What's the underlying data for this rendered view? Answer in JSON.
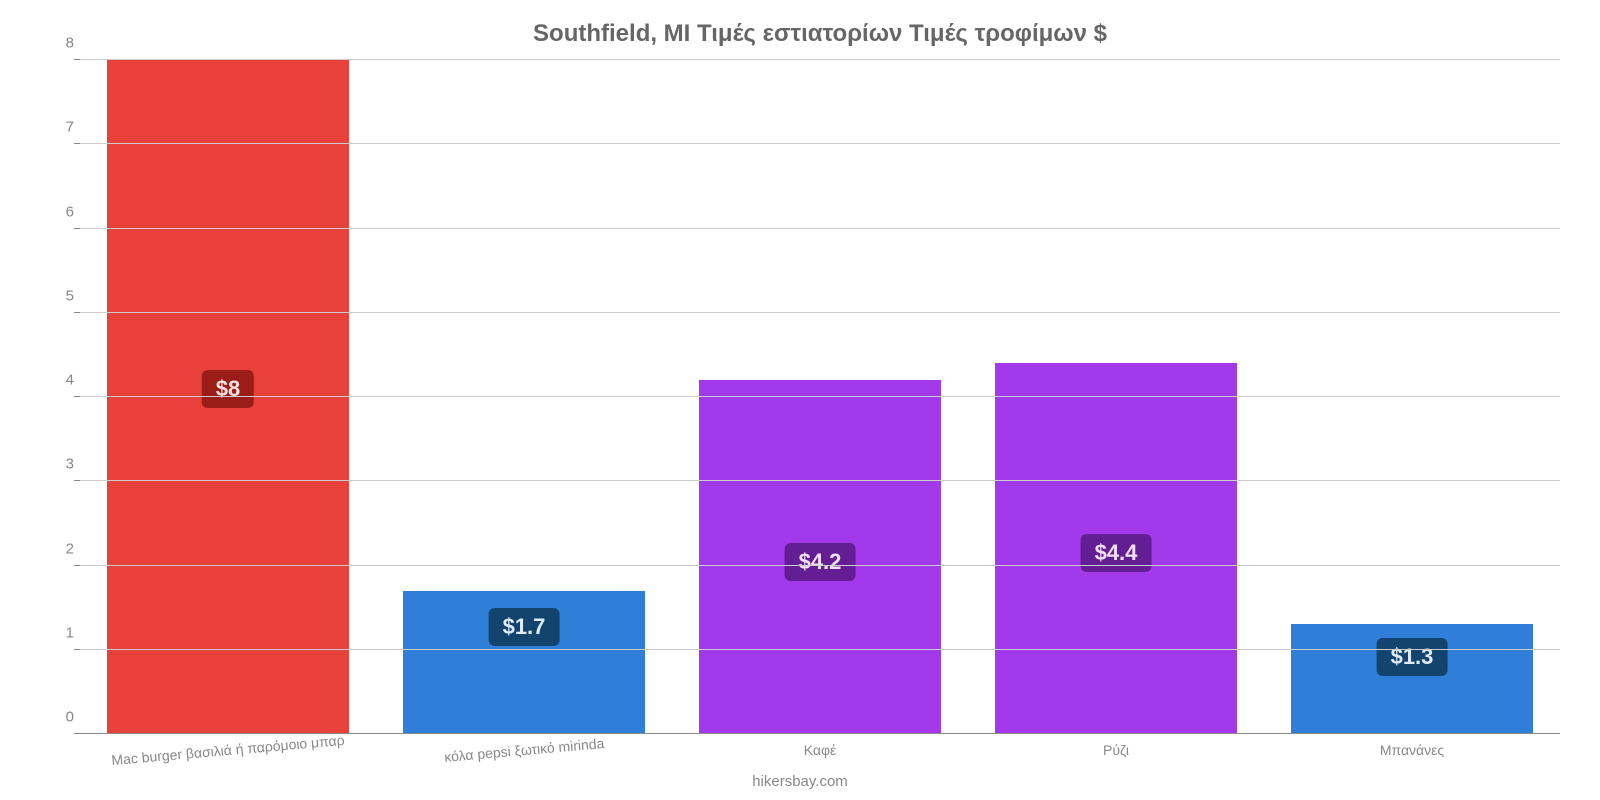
{
  "chart": {
    "type": "bar",
    "title": "Southfield, MI Τιμές εστιατορίων Τιμές τροφίμων $",
    "title_fontsize": 24,
    "title_color": "#666666",
    "background_color": "#ffffff",
    "grid_color": "#cccccc",
    "axis_color": "#888888",
    "tick_font_color": "#888888",
    "tick_fontsize": 15,
    "xlabel_fontsize": 14,
    "xlabel_color": "#888888",
    "ylim": [
      0,
      8
    ],
    "yticks": [
      0,
      1,
      2,
      3,
      4,
      5,
      6,
      7,
      8
    ],
    "bar_width": 0.82,
    "categories": [
      "Mac burger βασιλιά ή παρόμοιο μπαρ",
      "κόλα pepsi ξωτικό mirinda",
      "Καφέ",
      "Ρύζι",
      "Μπανάνες"
    ],
    "values": [
      8,
      1.7,
      4.2,
      4.4,
      1.3
    ],
    "value_labels": [
      "$8",
      "$1.7",
      "$4.2",
      "$4.4",
      "$1.3"
    ],
    "bar_colors": [
      "#e8403a",
      "#2f7ed8",
      "#a23aeb",
      "#a23aeb",
      "#2f7ed8"
    ],
    "badge_colors": [
      "#8d1712",
      "#0e3a5c",
      "#591a86",
      "#591a86",
      "#0e3a5c"
    ],
    "footer": "hikersbay.com",
    "footer_color": "#888888",
    "footer_fontsize": 15
  }
}
